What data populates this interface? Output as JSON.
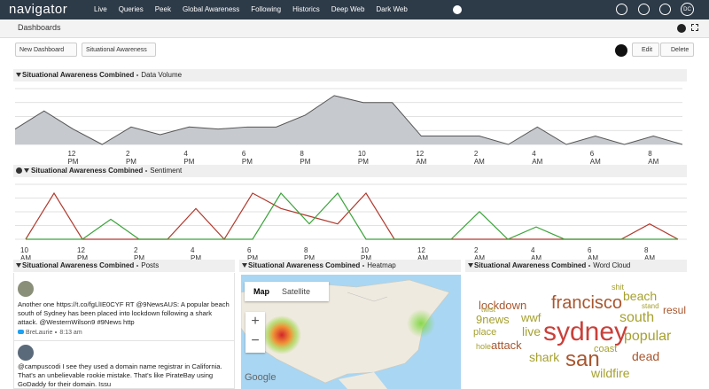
{
  "nav": {
    "logo": "navigator",
    "items": [
      "Live",
      "Queries",
      "Peek",
      "Global Awareness",
      "Following",
      "Historics",
      "Deep Web",
      "Dark Web"
    ],
    "avatar": "DC"
  },
  "breadcrumb": "Dashboards",
  "toolbar": {
    "new_dashboard": "New Dashboard",
    "dashboard_select": "Situational Awareness",
    "edit": "Edit",
    "delete": "Delete"
  },
  "volume_chart": {
    "type": "area",
    "title": "Situational Awareness Combined",
    "subtitle": "Data Volume",
    "categories": [
      null,
      null,
      "12 PM",
      null,
      "2 PM",
      null,
      "4 PM",
      null,
      "6 PM",
      null,
      "8 PM",
      null,
      "10 PM",
      null,
      "12 AM",
      null,
      "2 AM",
      null,
      "4 AM",
      null,
      "6 AM",
      null,
      "8 AM",
      null
    ],
    "values": [
      1.1,
      2.4,
      1.1,
      0,
      1.25,
      0.7,
      1.25,
      1.1,
      1.25,
      1.25,
      2.1,
      3.5,
      3,
      3,
      0.6,
      0.6,
      0.6,
      0,
      1.25,
      0,
      0.6,
      0,
      0.6,
      0
    ],
    "color": "#c6c9ce",
    "ylim": [
      0,
      4
    ]
  },
  "sentiment_chart": {
    "type": "line",
    "title": "Situational Awareness Combined",
    "subtitle": "Sentiment",
    "categories": [
      "10 AM",
      null,
      "12 PM",
      null,
      "2 PM",
      null,
      "4 PM",
      null,
      "6 PM",
      null,
      "8 PM",
      null,
      "10 PM",
      null,
      "12 AM",
      null,
      "2 AM",
      null,
      "4 AM",
      null,
      "6 AM",
      null,
      "8 AM",
      null
    ],
    "series": [
      {
        "color": "#b03a2e",
        "values": [
          0,
          3,
          0,
          0,
          0,
          0,
          2,
          0,
          3,
          2,
          1.5,
          1,
          3,
          0,
          0,
          0,
          0,
          0,
          0,
          0,
          0,
          0,
          1,
          0
        ]
      },
      {
        "color": "#3aa33a",
        "values": [
          0,
          0,
          0,
          1.3,
          0,
          0,
          0,
          0,
          0,
          3,
          1,
          3,
          0,
          0,
          0,
          0,
          1.8,
          0,
          0.8,
          0,
          0,
          0,
          0,
          0
        ]
      }
    ],
    "ylim": [
      0,
      3
    ]
  },
  "posts": {
    "title": "Situational Awareness Combined",
    "subtitle": "Posts",
    "items": [
      {
        "text": "Another one https://t.co/fgLlIE0CYF RT @9NewsAUS: A popular beach south of Sydney has been placed into lockdown following a shark attack. @WesternWilson9 #9News http",
        "user": "BreLaurie",
        "time": "8:13 am"
      },
      {
        "text": "@campuscodi I see they used a domain name registrar in California. That's an unbelievable rookie mistake. That's like PirateBay using GoDaddy for their domain. Issu"
      }
    ]
  },
  "heatmap": {
    "title": "Situational Awareness Combined",
    "subtitle": "Heatmap",
    "map_button": "Map",
    "satellite_button": "Satellite",
    "zoom_in": "+",
    "zoom_out": "−",
    "attribution": "Google"
  },
  "word_cloud": {
    "title": "Situational Awareness Combined",
    "subtitle": "Word Cloud",
    "words": [
      "shit",
      "beach",
      "francisco",
      "lockdown",
      "stand",
      "resul",
      "9news",
      "twist",
      "wwf",
      "south",
      "place",
      "live",
      "sydney",
      "popular",
      "hole",
      "attack",
      "coast",
      "shark",
      "san",
      "dead",
      "wildfire"
    ]
  }
}
